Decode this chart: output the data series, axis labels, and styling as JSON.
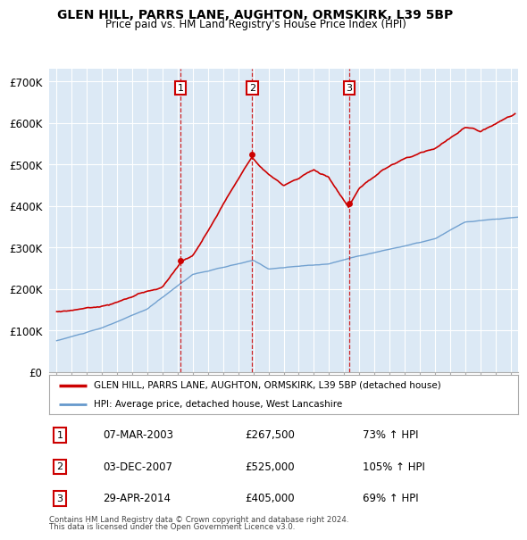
{
  "title": "GLEN HILL, PARRS LANE, AUGHTON, ORMSKIRK, L39 5BP",
  "subtitle": "Price paid vs. HM Land Registry's House Price Index (HPI)",
  "ylabel_ticks": [
    "£0",
    "£100K",
    "£200K",
    "£300K",
    "£400K",
    "£500K",
    "£600K",
    "£700K"
  ],
  "ytick_vals": [
    0,
    100000,
    200000,
    300000,
    400000,
    500000,
    600000,
    700000
  ],
  "ylim": [
    0,
    730000
  ],
  "xlim_start": 1994.5,
  "xlim_end": 2025.5,
  "sale_color": "#cc0000",
  "hpi_color": "#6699cc",
  "plot_bg_color": "#dce9f5",
  "sale_label": "GLEN HILL, PARRS LANE, AUGHTON, ORMSKIRK, L39 5BP (detached house)",
  "hpi_label": "HPI: Average price, detached house, West Lancashire",
  "transactions": [
    {
      "date": 2003.18,
      "price": 267500,
      "label": "1"
    },
    {
      "date": 2007.92,
      "price": 525000,
      "label": "2"
    },
    {
      "date": 2014.33,
      "price": 405000,
      "label": "3"
    }
  ],
  "transaction_rows": [
    {
      "num": "1",
      "date": "07-MAR-2003",
      "price": "£267,500",
      "change": "73% ↑ HPI"
    },
    {
      "num": "2",
      "date": "03-DEC-2007",
      "price": "£525,000",
      "change": "105% ↑ HPI"
    },
    {
      "num": "3",
      "date": "29-APR-2014",
      "price": "£405,000",
      "change": "69% ↑ HPI"
    }
  ],
  "footnote1": "Contains HM Land Registry data © Crown copyright and database right 2024.",
  "footnote2": "This data is licensed under the Open Government Licence v3.0.",
  "background_color": "#ffffff",
  "grid_color": "#ffffff"
}
